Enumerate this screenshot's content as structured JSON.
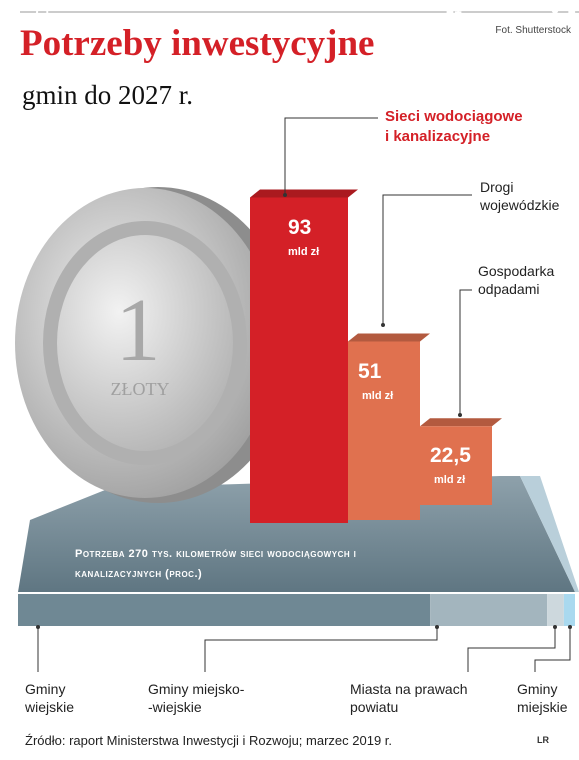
{
  "title": "Potrzeby inwestycyjne",
  "subtitle": "gmin do 2027 r.",
  "credit": "Fot. Shutterstock",
  "source": "Źródło: raport Ministerstwa Inwestycji i Rozwoju; marzec 2019 r.",
  "sign": "LR",
  "chart_data": [
    {
      "type": "bar",
      "categories": [
        "Sieci wodociągowe\ni kanalizacyjne",
        "Drogi\nwojewódzkie",
        "Gospodarka\nodpadami"
      ],
      "values": [
        93,
        51,
        22.5
      ],
      "value_labels": [
        "93",
        "51",
        "22,5"
      ],
      "unit": "mld zł",
      "colors": [
        "#d42027",
        "#e0714f",
        "#e0714f"
      ]
    },
    {
      "type": "stacked",
      "title": "Potrzeba 270 tys. kilometrów sieci wodociągowych i kanalizacyjnych (proc.)",
      "series": [
        {
          "name": "Gminy\nwiejskie",
          "color": "#6f8894",
          "values": [
            74
          ]
        },
        {
          "name": "Gminy miejsko-\n-wiejskie",
          "color": "#a3b5be",
          "values": [
            21
          ]
        },
        {
          "name": "Miasta na prawach\npowiatu",
          "color": "#cdd8dd",
          "values": [
            3
          ]
        },
        {
          "name": "Gminy\nmiejskie",
          "color": "#a9d9ef",
          "values": [
            2
          ]
        }
      ]
    }
  ]
}
